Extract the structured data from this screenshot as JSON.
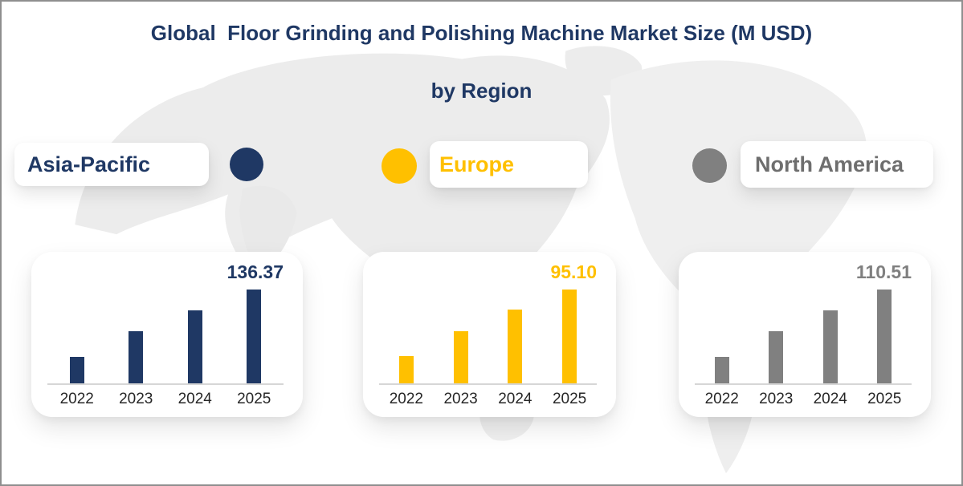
{
  "title": {
    "line1": "Global  Floor Grinding and Polishing Machine Market Size (M USD)",
    "line2": "by Region"
  },
  "legend": [
    {
      "label": "Asia-Pacific",
      "color": "#1F3864",
      "text_color": "#1F3864"
    },
    {
      "label": "Europe",
      "color": "#FFC000",
      "text_color": "#FFC000"
    },
    {
      "label": "North America",
      "color": "#808080",
      "text_color": "#6e6e6e"
    }
  ],
  "chart_data": [
    {
      "type": "bar",
      "region": "Asia-Pacific",
      "categories": [
        "2022",
        "2023",
        "2024",
        "2025"
      ],
      "values": [
        38.5,
        76,
        106,
        136.37
      ],
      "value_label": "136.37",
      "labeled_point": {
        "year": "2025",
        "value": 136.37
      },
      "color": "#1F3864",
      "xlabel": "",
      "ylabel": "Market Size (M USD)",
      "grid": false,
      "note": "only 2025 value is labeled; earlier years estimated from bar heights"
    },
    {
      "type": "bar",
      "region": "Europe",
      "categories": [
        "2022",
        "2023",
        "2024",
        "2025"
      ],
      "values": [
        27.5,
        52.5,
        74.5,
        95.1
      ],
      "value_label": "95.10",
      "labeled_point": {
        "year": "2025",
        "value": 95.1
      },
      "color": "#FFC000",
      "xlabel": "",
      "ylabel": "Market Size (M USD)",
      "grid": false,
      "note": "only 2025 value is labeled; earlier years estimated from bar heights"
    },
    {
      "type": "bar",
      "region": "North America",
      "categories": [
        "2022",
        "2023",
        "2024",
        "2025"
      ],
      "values": [
        31,
        61.5,
        86,
        110.51
      ],
      "value_label": "110.51",
      "labeled_point": {
        "year": "2025",
        "value": 110.51
      },
      "color": "#808080",
      "xlabel": "",
      "ylabel": "Market Size (M USD)",
      "grid": false,
      "note": "only 2025 value is labeled; earlier years estimated from bar heights"
    }
  ],
  "colors": {
    "title": "#1F3864",
    "navy": "#1F3864",
    "gold": "#FFC000",
    "gray": "#808080",
    "axis_line": "#d6d6d6",
    "map_watermark": "#ececec",
    "frame_border": "#8f8f8f"
  }
}
